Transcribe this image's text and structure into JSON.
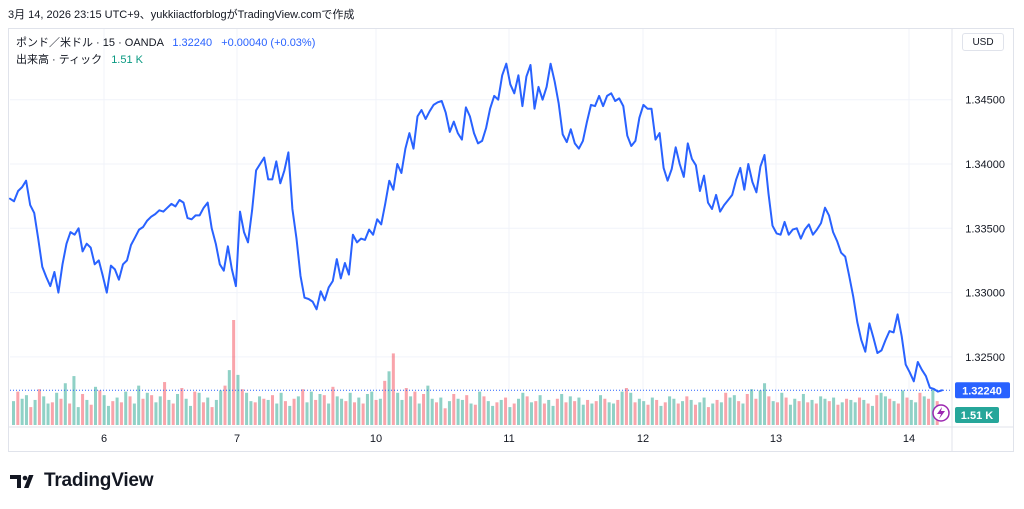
{
  "caption": "3月 14, 2026 23:15 UTC+9、yukkiiactforblogがTradingView.comで作成",
  "legend": {
    "symbol": "ポンド／米ドル · 15 · OANDA",
    "price": "1.32240",
    "change": "+0.00040 (+0.03%)",
    "volume_label": "出来高 · ティック",
    "volume_value": "1.51 K"
  },
  "currency_button": "USD",
  "logo_text": "TradingView",
  "colors": {
    "line": "#2962ff",
    "volume_up": "#089981",
    "volume_down": "#f23645",
    "price_tag": "#2962ff",
    "volume_tag": "#26a69a"
  },
  "chart_data": {
    "type": "line",
    "x_ticks": [
      "6",
      "7",
      "10",
      "11",
      "12",
      "13",
      "14"
    ],
    "y_ticks": [
      "1.32500",
      "1.33000",
      "1.33500",
      "1.34000",
      "1.34500"
    ],
    "ylim": [
      1.3197,
      1.3505
    ],
    "last_price_tag": "1.32240",
    "volume_tag": "1.51 K",
    "series": [
      {
        "values": [
          1.3373,
          1.3371,
          1.3379,
          1.3382,
          1.3387,
          1.3368,
          1.3362,
          1.3342,
          1.332,
          1.3312,
          1.3305,
          1.3316,
          1.33,
          1.3322,
          1.3338,
          1.3347,
          1.3345,
          1.335,
          1.3332,
          1.3338,
          1.3335,
          1.3322,
          1.3325,
          1.3313,
          1.33,
          1.3321,
          1.3318,
          1.331,
          1.3322,
          1.3325,
          1.3337,
          1.3343,
          1.3349,
          1.3351,
          1.3356,
          1.3359,
          1.3361,
          1.3364,
          1.3363,
          1.3366,
          1.3369,
          1.3367,
          1.3372,
          1.337,
          1.3358,
          1.3357,
          1.336,
          1.336,
          1.3366,
          1.337,
          1.335,
          1.3338,
          1.3322,
          1.3317,
          1.3336,
          1.3318,
          1.3305,
          1.3363,
          1.3347,
          1.3339,
          1.3364,
          1.3395,
          1.34,
          1.3405,
          1.3388,
          1.3388,
          1.3402,
          1.3385,
          1.3395,
          1.3409,
          1.3365,
          1.3342,
          1.3313,
          1.3296,
          1.3295,
          1.3293,
          1.3287,
          1.3301,
          1.3294,
          1.3304,
          1.3309,
          1.3326,
          1.3311,
          1.3323,
          1.3314,
          1.3345,
          1.3339,
          1.3342,
          1.3341,
          1.3349,
          1.3345,
          1.3357,
          1.3353,
          1.3369,
          1.3387,
          1.338,
          1.34,
          1.3393,
          1.3412,
          1.3424,
          1.3412,
          1.3437,
          1.3442,
          1.3435,
          1.3441,
          1.3446,
          1.3448,
          1.3449,
          1.344,
          1.3425,
          1.3433,
          1.3424,
          1.3419,
          1.3444,
          1.3437,
          1.3424,
          1.3416,
          1.3418,
          1.3428,
          1.3443,
          1.3453,
          1.345,
          1.3469,
          1.3478,
          1.3462,
          1.3455,
          1.3469,
          1.3445,
          1.3468,
          1.3477,
          1.3443,
          1.346,
          1.345,
          1.346,
          1.3478,
          1.3464,
          1.3447,
          1.3423,
          1.3417,
          1.3427,
          1.3416,
          1.3412,
          1.3418,
          1.3433,
          1.3446,
          1.3445,
          1.3453,
          1.3445,
          1.3453,
          1.3455,
          1.3449,
          1.3451,
          1.3445,
          1.3422,
          1.3414,
          1.3418,
          1.3436,
          1.3446,
          1.3443,
          1.3443,
          1.3419,
          1.3424,
          1.3397,
          1.3387,
          1.3396,
          1.3413,
          1.34,
          1.339,
          1.3416,
          1.3404,
          1.3399,
          1.3379,
          1.3391,
          1.337,
          1.3365,
          1.3376,
          1.3363,
          1.3368,
          1.3372,
          1.3376,
          1.3388,
          1.3397,
          1.338,
          1.34,
          1.3386,
          1.3378,
          1.3398,
          1.3407,
          1.3377,
          1.3352,
          1.3346,
          1.3345,
          1.3355,
          1.3345,
          1.3349,
          1.335,
          1.3342,
          1.3349,
          1.3353,
          1.3345,
          1.3349,
          1.3354,
          1.3366,
          1.336,
          1.3347,
          1.334,
          1.3331,
          1.3328,
          1.3313,
          1.3297,
          1.3277,
          1.3263,
          1.3254,
          1.3276,
          1.3265,
          1.3253,
          1.3255,
          1.3263,
          1.327,
          1.3269,
          1.3283,
          1.3266,
          1.3244,
          1.3238,
          1.3231,
          1.3246,
          1.324,
          1.3235,
          1.3226,
          1.3225,
          1.3223,
          1.3224
        ]
      }
    ],
    "volume_values": [
      20,
      28,
      22,
      25,
      15,
      21,
      30,
      24,
      18,
      19,
      27,
      22,
      35,
      18,
      41,
      15,
      26,
      21,
      17,
      32,
      29,
      25,
      16,
      20,
      23,
      19,
      28,
      24,
      18,
      33,
      22,
      27,
      25,
      19,
      24,
      36,
      21,
      18,
      26,
      31,
      22,
      16,
      28,
      27,
      19,
      23,
      15,
      21,
      29,
      33,
      46,
      88,
      42,
      30,
      27,
      20,
      19,
      24,
      22,
      21,
      25,
      18,
      27,
      20,
      16,
      22,
      24,
      30,
      19,
      28,
      21,
      26,
      25,
      18,
      32,
      24,
      22,
      20,
      27,
      19,
      23,
      18,
      26,
      28,
      21,
      22,
      37,
      45,
      60,
      27,
      21,
      31,
      24,
      28,
      18,
      26,
      33,
      22,
      19,
      23,
      14,
      20,
      26,
      22,
      21,
      25,
      18,
      17,
      28,
      24,
      20,
      16,
      19,
      21,
      23,
      15,
      18,
      22,
      27,
      24,
      19,
      20,
      25,
      18,
      21,
      16,
      22,
      26,
      19,
      24,
      20,
      23,
      17,
      21,
      18,
      20,
      25,
      22,
      19,
      18,
      21,
      28,
      31,
      27,
      19,
      22,
      20,
      17,
      23,
      21,
      16,
      19,
      24,
      22,
      18,
      20,
      24,
      21,
      17,
      19,
      23,
      15,
      18,
      21,
      19,
      27,
      23,
      25,
      20,
      18,
      26,
      30,
      22,
      29,
      35,
      24,
      20,
      19,
      27,
      23,
      17,
      22,
      20,
      26,
      19,
      21,
      18,
      24,
      22,
      20,
      23,
      17,
      19,
      22,
      21,
      19,
      23,
      21,
      18,
      16,
      25,
      27,
      24,
      22,
      20,
      18,
      29,
      23,
      21,
      19,
      27,
      24,
      22,
      31,
      20
    ],
    "volume_up": [
      1,
      0,
      1,
      1,
      0,
      1,
      0,
      1,
      1,
      0,
      1,
      0,
      1,
      0,
      1,
      1,
      0,
      1,
      0,
      1,
      0,
      1,
      1,
      0,
      1,
      0,
      1,
      0,
      1,
      1,
      0,
      1,
      0,
      1,
      1,
      0,
      1,
      0,
      1,
      0,
      1,
      1,
      0,
      1,
      0,
      1,
      0,
      1,
      1,
      0,
      1,
      0,
      1,
      0,
      1,
      1,
      0,
      1,
      0,
      1,
      0,
      1,
      1,
      0,
      1,
      0,
      1,
      0,
      1,
      1,
      0,
      1,
      0,
      1,
      0,
      1,
      1,
      0,
      1,
      0,
      1,
      0,
      1,
      1,
      0,
      1,
      0,
      1,
      0,
      1,
      1,
      0,
      1,
      0,
      1,
      0,
      1,
      1,
      0,
      1,
      0,
      1,
      0,
      1,
      1,
      0,
      1,
      0,
      1,
      0,
      1,
      1,
      0,
      1,
      0,
      1,
      0,
      1,
      1,
      0,
      1,
      0,
      1,
      0,
      1,
      1,
      0,
      1,
      0,
      1,
      0,
      1,
      1,
      0,
      1,
      0,
      1,
      0,
      1,
      1,
      0,
      1,
      0,
      1,
      0,
      1,
      1,
      0,
      1,
      0,
      1,
      0,
      1,
      1,
      0,
      1,
      0,
      1,
      0,
      1,
      1,
      0,
      1,
      0,
      1,
      0,
      1,
      1,
      0,
      1,
      0,
      1,
      0,
      1,
      1,
      0,
      1,
      0,
      1,
      0,
      1,
      1,
      0,
      1,
      0,
      1,
      0,
      1,
      1,
      0,
      1,
      0,
      1,
      0,
      1,
      1,
      0,
      1,
      0,
      1,
      0,
      1,
      1,
      0,
      1,
      0,
      1,
      0,
      1,
      1,
      0,
      1,
      0,
      1,
      0,
      1,
      1,
      0,
      1,
      0,
      1,
      0
    ]
  }
}
